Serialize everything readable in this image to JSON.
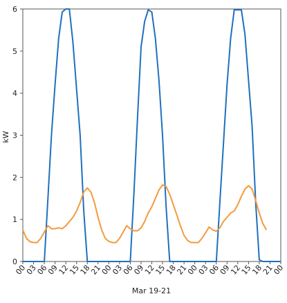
{
  "chart_data": {
    "type": "line",
    "title": "",
    "xlabel": "Mar 19-21",
    "ylabel": "kW",
    "ylim": [
      0,
      6
    ],
    "y_ticks": [
      0,
      1,
      2,
      3,
      4,
      5,
      6
    ],
    "x_range_hours": [
      0,
      72
    ],
    "x_tick_labels": [
      "00",
      "03",
      "06",
      "09",
      "12",
      "15",
      "18",
      "21",
      "00",
      "03",
      "06",
      "09",
      "12",
      "15",
      "18",
      "21",
      "00",
      "03",
      "06",
      "09",
      "12",
      "15",
      "18",
      "21",
      "00"
    ],
    "grid": true,
    "legend": "none",
    "series": [
      {
        "color": "#1f6fbf",
        "points": [
          [
            0,
            0
          ],
          [
            1,
            0
          ],
          [
            2,
            0
          ],
          [
            3,
            0
          ],
          [
            4,
            0
          ],
          [
            5,
            0
          ],
          [
            6,
            0
          ],
          [
            7,
            1.5
          ],
          [
            8,
            3.0
          ],
          [
            9,
            4.2
          ],
          [
            10,
            5.3
          ],
          [
            11,
            5.93
          ],
          [
            12,
            6.0
          ],
          [
            13,
            6.0
          ],
          [
            14,
            5.2
          ],
          [
            15,
            4.1
          ],
          [
            16,
            3.0
          ],
          [
            17,
            1.2
          ],
          [
            18,
            0
          ],
          [
            19,
            0
          ],
          [
            20,
            0
          ],
          [
            21,
            0
          ],
          [
            22,
            0
          ],
          [
            23,
            0
          ],
          [
            24,
            0
          ],
          [
            25,
            0
          ],
          [
            26,
            0
          ],
          [
            27,
            0
          ],
          [
            28,
            0
          ],
          [
            29,
            0
          ],
          [
            30,
            0
          ],
          [
            31,
            1.6
          ],
          [
            32,
            3.4
          ],
          [
            33,
            5.1
          ],
          [
            34,
            5.7
          ],
          [
            35,
            5.98
          ],
          [
            36,
            5.93
          ],
          [
            37,
            5.3
          ],
          [
            38,
            4.3
          ],
          [
            39,
            3.0
          ],
          [
            40,
            1.3
          ],
          [
            41,
            0
          ],
          [
            42,
            0
          ],
          [
            43,
            0
          ],
          [
            44,
            0
          ],
          [
            45,
            0
          ],
          [
            46,
            0
          ],
          [
            47,
            0
          ],
          [
            48,
            0
          ],
          [
            49,
            0
          ],
          [
            50,
            0
          ],
          [
            51,
            0
          ],
          [
            52,
            0
          ],
          [
            53,
            0
          ],
          [
            54,
            0
          ],
          [
            55,
            1.4
          ],
          [
            56,
            2.8
          ],
          [
            57,
            4.2
          ],
          [
            58,
            5.3
          ],
          [
            59,
            5.98
          ],
          [
            60,
            5.98
          ],
          [
            61,
            5.98
          ],
          [
            62,
            5.4
          ],
          [
            63,
            4.3
          ],
          [
            64,
            3.2
          ],
          [
            65,
            1.4
          ],
          [
            66,
            0.04
          ],
          [
            67,
            0
          ],
          [
            68,
            0
          ],
          [
            69,
            0
          ],
          [
            70,
            0
          ],
          [
            71,
            0
          ],
          [
            72,
            0
          ]
        ]
      },
      {
        "color": "#f39a3b",
        "points": [
          [
            0,
            0.75
          ],
          [
            1,
            0.55
          ],
          [
            2,
            0.47
          ],
          [
            3,
            0.45
          ],
          [
            4,
            0.45
          ],
          [
            5,
            0.55
          ],
          [
            6,
            0.7
          ],
          [
            7,
            0.85
          ],
          [
            8,
            0.78
          ],
          [
            9,
            0.78
          ],
          [
            10,
            0.8
          ],
          [
            11,
            0.78
          ],
          [
            12,
            0.85
          ],
          [
            13,
            0.95
          ],
          [
            14,
            1.05
          ],
          [
            15,
            1.2
          ],
          [
            16,
            1.4
          ],
          [
            17,
            1.65
          ],
          [
            18,
            1.75
          ],
          [
            19,
            1.65
          ],
          [
            20,
            1.4
          ],
          [
            21,
            1.05
          ],
          [
            22,
            0.75
          ],
          [
            23,
            0.55
          ],
          [
            24,
            0.48
          ],
          [
            25,
            0.45
          ],
          [
            26,
            0.45
          ],
          [
            27,
            0.55
          ],
          [
            28,
            0.7
          ],
          [
            29,
            0.85
          ],
          [
            30,
            0.78
          ],
          [
            31,
            0.73
          ],
          [
            32,
            0.73
          ],
          [
            33,
            0.8
          ],
          [
            34,
            0.95
          ],
          [
            35,
            1.15
          ],
          [
            36,
            1.3
          ],
          [
            37,
            1.5
          ],
          [
            38,
            1.7
          ],
          [
            39,
            1.82
          ],
          [
            40,
            1.78
          ],
          [
            41,
            1.6
          ],
          [
            42,
            1.35
          ],
          [
            43,
            1.1
          ],
          [
            44,
            0.85
          ],
          [
            45,
            0.62
          ],
          [
            46,
            0.5
          ],
          [
            47,
            0.45
          ],
          [
            48,
            0.45
          ],
          [
            49,
            0.45
          ],
          [
            50,
            0.55
          ],
          [
            51,
            0.68
          ],
          [
            52,
            0.82
          ],
          [
            53,
            0.75
          ],
          [
            54,
            0.72
          ],
          [
            55,
            0.8
          ],
          [
            56,
            0.95
          ],
          [
            57,
            1.05
          ],
          [
            58,
            1.15
          ],
          [
            59,
            1.2
          ],
          [
            60,
            1.35
          ],
          [
            61,
            1.55
          ],
          [
            62,
            1.72
          ],
          [
            63,
            1.8
          ],
          [
            64,
            1.72
          ],
          [
            65,
            1.45
          ],
          [
            66,
            1.15
          ],
          [
            67,
            0.9
          ],
          [
            68,
            0.75
          ]
        ]
      }
    ]
  }
}
